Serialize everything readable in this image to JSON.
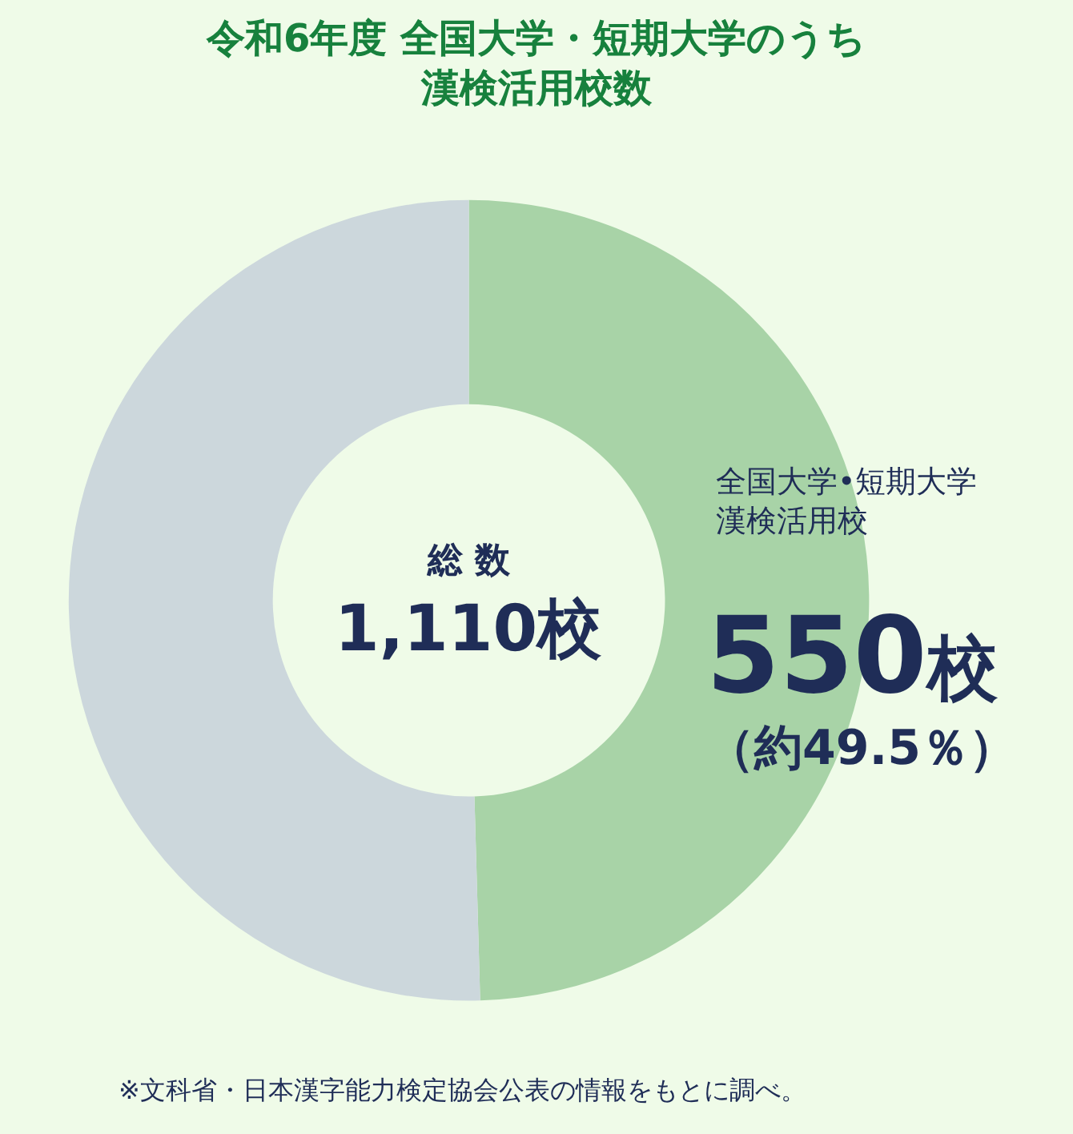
{
  "chart_data": {
    "type": "donut",
    "title": "令和6年度 全国大学・短期大学のうち漢検活用校数",
    "categories": [
      "全国大学•短期大学漢検活用校",
      null
    ],
    "values": [
      550,
      560
    ],
    "colors": [
      "#a8d3a7",
      "#ccd7dc"
    ],
    "value_labels": [
      "550校",
      null
    ],
    "annotations": [
      "総 数",
      "1,110校",
      "（約49.5％）",
      "※文科省・日本漢字能力検定協会公表の情報をもとに調べ。"
    ],
    "legend": false
  }
}
